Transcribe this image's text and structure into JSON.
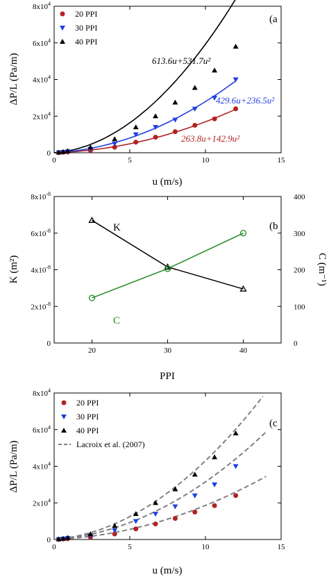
{
  "colors": {
    "ppi20": "#b22222",
    "ppi30": "#1f3fe0",
    "ppi40": "#000000",
    "K": "#000000",
    "C": "#1f8a1f",
    "lacroix": "#808080"
  },
  "chart_data": [
    {
      "type": "scatter",
      "panel_label": "(a",
      "xlabel": "u (m/s)",
      "ylabel": "ΔP/L (Pa/m)",
      "xlim": [
        0,
        15
      ],
      "ylim": [
        0,
        80000
      ],
      "x_ticks": [
        "0",
        "5",
        "10",
        "15"
      ],
      "y_ticks": [
        "0",
        "2x10^4",
        "4x10^4",
        "6x10^4",
        "8x10^4"
      ],
      "legend_position": "top-left",
      "series": [
        {
          "name": "20 PPI",
          "marker": "circle",
          "x": [
            0.3,
            0.6,
            0.9,
            2.4,
            4.0,
            5.4,
            6.7,
            8.0,
            9.3,
            10.6,
            12.0
          ],
          "y": [
            100,
            300,
            400,
            1200,
            3000,
            5800,
            8500,
            11500,
            15000,
            18500,
            24000
          ]
        },
        {
          "name": "30 PPI",
          "marker": "triangle-down",
          "x": [
            0.3,
            0.6,
            0.9,
            2.4,
            4.0,
            5.4,
            6.7,
            8.0,
            9.3,
            10.6,
            12.0
          ],
          "y": [
            100,
            400,
            700,
            2000,
            5000,
            10000,
            14000,
            18000,
            24000,
            30000,
            40000
          ]
        },
        {
          "name": "40 PPI",
          "marker": "triangle-up",
          "x": [
            0.3,
            0.6,
            0.9,
            2.4,
            4.0,
            5.4,
            6.7,
            8.0,
            9.3,
            10.6,
            12.0
          ],
          "y": [
            200,
            500,
            1000,
            3000,
            7500,
            14000,
            20000,
            27500,
            35500,
            45000,
            58000
          ]
        }
      ],
      "fits": [
        {
          "series": "20 PPI",
          "a": 263.8,
          "b": 142.9,
          "label": "263.8u+142.9u²"
        },
        {
          "series": "30 PPI",
          "a": 429.6,
          "b": 236.5,
          "label": "429.6u+236.5u²"
        },
        {
          "series": "40 PPI",
          "a": 613.6,
          "b": 531.7,
          "label": "613.6u+531.7u²"
        }
      ]
    },
    {
      "type": "line",
      "panel_label": "(b",
      "xlabel": "PPI",
      "ylabel": "K (m²)",
      "y2label": "C (m⁻¹)",
      "xlim": [
        15,
        45
      ],
      "ylim": [
        0,
        8e-08
      ],
      "y2lim": [
        0,
        400
      ],
      "x_ticks": [
        "20",
        "30",
        "40"
      ],
      "y_ticks": [
        "0",
        "2x10^-8",
        "4x10^-8",
        "6x10^-8",
        "8x10^-8"
      ],
      "y2_ticks": [
        "0",
        "100",
        "200",
        "300",
        "400"
      ],
      "series": [
        {
          "name": "K",
          "axis": "left",
          "marker": "triangle-up-open",
          "x": [
            20,
            30,
            40
          ],
          "y": [
            6.7e-08,
            4.15e-08,
            2.95e-08
          ]
        },
        {
          "name": "C",
          "axis": "right",
          "marker": "circle-open",
          "x": [
            20,
            30,
            40
          ],
          "y": [
            123,
            203,
            300
          ]
        }
      ]
    },
    {
      "type": "scatter",
      "panel_label": "(c",
      "xlabel": "u (m/s)",
      "ylabel": "ΔP/L (Pa/m)",
      "xlim": [
        0,
        15
      ],
      "ylim": [
        0,
        80000
      ],
      "x_ticks": [
        "0",
        "5",
        "10",
        "15"
      ],
      "y_ticks": [
        "0",
        "2x10^4",
        "4x10^4",
        "6x10^4",
        "8x10^4"
      ],
      "legend_position": "top-left",
      "series": [
        {
          "name": "20 PPI",
          "marker": "circle",
          "x": [
            0.3,
            0.6,
            0.9,
            2.4,
            4.0,
            5.4,
            6.7,
            8.0,
            9.3,
            10.6,
            12.0
          ],
          "y": [
            100,
            300,
            400,
            1200,
            3000,
            5800,
            8500,
            11500,
            15000,
            18500,
            24000
          ]
        },
        {
          "name": "30 PPI",
          "marker": "triangle-down",
          "x": [
            0.3,
            0.6,
            0.9,
            2.4,
            4.0,
            5.4,
            6.7,
            8.0,
            9.3,
            10.6,
            12.0
          ],
          "y": [
            100,
            400,
            700,
            2000,
            5000,
            10000,
            14000,
            18000,
            24000,
            30000,
            40000
          ]
        },
        {
          "name": "40 PPI",
          "marker": "triangle-up",
          "x": [
            0.3,
            0.6,
            0.9,
            2.4,
            4.0,
            5.4,
            6.7,
            8.0,
            9.3,
            10.6,
            12.0
          ],
          "y": [
            200,
            500,
            1000,
            3000,
            7500,
            14000,
            20000,
            27500,
            35500,
            45000,
            58000
          ]
        }
      ],
      "model_name": "Lacroix et al. (2007)",
      "model_curves": [
        {
          "a": 360,
          "b": 150,
          "x_end": 14
        },
        {
          "a": 550,
          "b": 260,
          "x_end": 14
        },
        {
          "a": 700,
          "b": 360,
          "x_end": 14
        }
      ]
    }
  ]
}
